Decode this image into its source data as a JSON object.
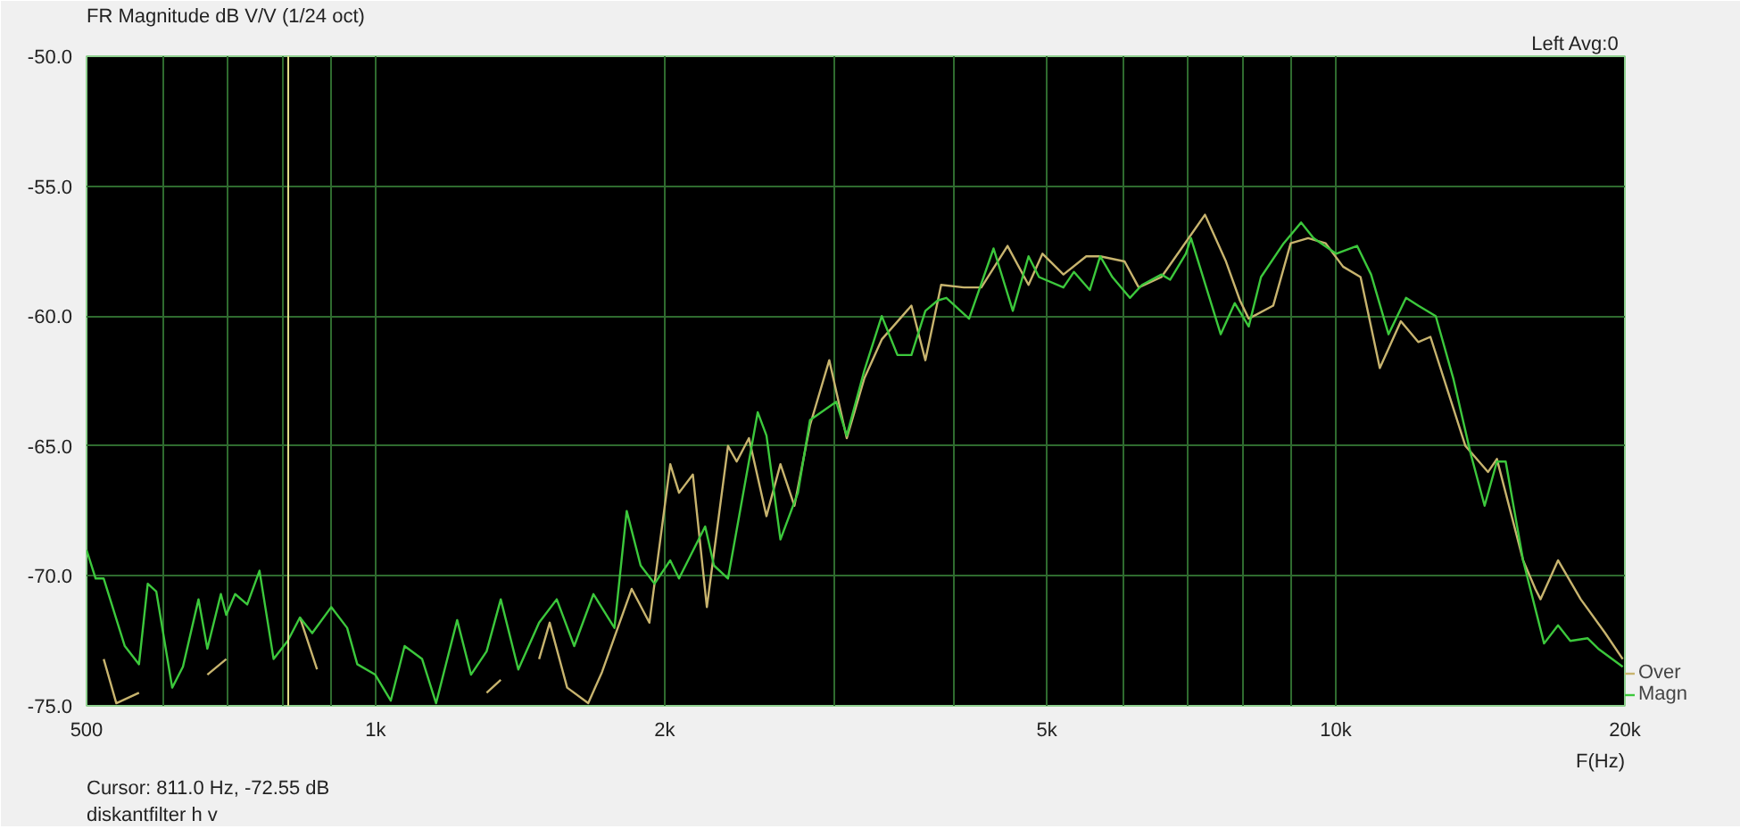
{
  "chart_data": {
    "type": "line",
    "title": "FR Magnitude dB V/V (1/24 oct)",
    "xlabel": "F(Hz)",
    "annotations": [
      "Left  Avg:0",
      "Cursor:   811.0 Hz, -72.55 dB",
      "diskantfilter h v"
    ],
    "log": "x",
    "grid": true,
    "legend": "bottom right",
    "line_style": "solid",
    "xlim": [
      500,
      20000
    ],
    "ylim": [
      -75,
      -50
    ],
    "xticks": [
      500,
      {
        "value": 600,
        "label": null
      },
      {
        "value": 700,
        "label": null
      },
      {
        "value": 800,
        "label": null
      },
      {
        "value": 900,
        "label": null
      },
      {
        "value": 1000,
        "label": "1k"
      },
      {
        "value": 2000,
        "label": "2k"
      },
      {
        "value": 3000,
        "label": null
      },
      {
        "value": 4000,
        "label": null
      },
      {
        "value": 5000,
        "label": "5k"
      },
      {
        "value": 6000,
        "label": null
      },
      {
        "value": 7000,
        "label": null
      },
      {
        "value": 8000,
        "label": null
      },
      {
        "value": 9000,
        "label": null
      },
      {
        "value": 10000,
        "label": "10k"
      },
      {
        "value": 20000,
        "label": "20k"
      }
    ],
    "yticks": [
      {
        "value": -75,
        "label": "-75.0"
      },
      {
        "value": -70,
        "label": "-70.0"
      },
      {
        "value": -65,
        "label": "-65.0"
      },
      {
        "value": -60,
        "label": "-60.0"
      },
      {
        "value": -55,
        "label": "-55.0"
      },
      {
        "value": -50,
        "label": "-50.0"
      }
    ],
    "ref_lines": [
      {
        "axis": "x",
        "value": 811,
        "label": null,
        "color": "#e6e28c"
      }
    ],
    "series": [
      {
        "name": "Over",
        "color": "#c8b46e",
        "x": [
          521,
          537,
          567,
          591,
          668,
          699,
          714,
          834,
          869,
          899,
          1305,
          1350,
          1408,
          1480,
          1518,
          1583,
          1665,
          1721,
          1848,
          1928,
          2027,
          2070,
          2140,
          2213,
          2328,
          2377,
          2448,
          2553,
          2640,
          2730,
          2834,
          2968,
          3095,
          3228,
          3366,
          3614,
          3737,
          3881,
          4099,
          4274,
          4551,
          4786,
          4949,
          5204,
          5496,
          5683,
          6026,
          6233,
          6582,
          7307,
          7684,
          7946,
          8115,
          8605,
          8974,
          9358,
          9759,
          10176,
          10611,
          11112,
          11687,
          12185,
          12546,
          13084,
          13645,
          14406,
          14714,
          15669,
          16135,
          16338,
          17037,
          17991,
          19078,
          19897
        ],
        "values": [
          -73.2,
          -74.9,
          -74.5,
          null,
          -73.8,
          -73.2,
          null,
          -71.6,
          -73.6,
          null,
          -74.5,
          -74.0,
          null,
          -73.2,
          -71.8,
          -74.3,
          -74.9,
          -73.7,
          -70.5,
          -71.8,
          -65.7,
          -66.8,
          -66.1,
          -71.2,
          -65.0,
          -65.6,
          -64.7,
          -67.7,
          -65.7,
          -67.3,
          -64.2,
          -61.7,
          -64.7,
          -62.4,
          -60.9,
          -59.6,
          -61.7,
          -58.8,
          -58.9,
          -58.9,
          -57.3,
          -58.8,
          -57.6,
          -58.4,
          -57.7,
          -57.7,
          -57.9,
          -58.9,
          -58.5,
          -56.1,
          -57.9,
          -59.4,
          -60.1,
          -59.6,
          -57.2,
          -57.0,
          -57.2,
          -58.1,
          -58.5,
          -62.0,
          -60.2,
          -61.0,
          -60.8,
          -62.9,
          -65.0,
          -66.0,
          -65.5,
          -69.4,
          -70.5,
          -70.9,
          -69.4,
          -70.9,
          -72.2,
          -73.2
        ]
      },
      {
        "name": "Magn",
        "color": "#3cc83c",
        "x": [
          500,
          511,
          521,
          548,
          567,
          579,
          591,
          614,
          630,
          654,
          668,
          690,
          699,
          714,
          735,
          757,
          783,
          810,
          834,
          859,
          899,
          934,
          957,
          999,
          1037,
          1072,
          1118,
          1156,
          1216,
          1257,
          1305,
          1350,
          1408,
          1480,
          1544,
          1610,
          1686,
          1773,
          1826,
          1888,
          1952,
          2027,
          2070,
          2204,
          2251,
          2328,
          2500,
          2553,
          2640,
          2753,
          2834,
          3018,
          3095,
          3228,
          3366,
          3495,
          3614,
          3737,
          3849,
          3930,
          4150,
          4401,
          4609,
          4786,
          4908,
          5204,
          5337,
          5543,
          5683,
          5852,
          6103,
          6284,
          6582,
          6722,
          6979,
          7066,
          7217,
          7588,
          7847,
          8115,
          8357,
          8824,
          9202,
          9477,
          10006,
          10522,
          10882,
          11347,
          11834,
          12185,
          12707,
          13253,
          13818,
          14287,
          14714,
          15027,
          15669,
          16477,
          17037,
          17546,
          18294,
          18760,
          19897
        ],
        "values": [
          -69.0,
          -70.1,
          -70.1,
          -72.7,
          -73.4,
          -70.3,
          -70.6,
          -74.3,
          -73.5,
          -70.9,
          -72.8,
          -70.7,
          -71.5,
          -70.7,
          -71.1,
          -69.8,
          -73.2,
          -72.5,
          -71.6,
          -72.2,
          -71.2,
          -72.0,
          -73.4,
          -73.8,
          -74.8,
          -72.7,
          -73.2,
          -74.9,
          -71.7,
          -73.8,
          -72.9,
          -70.9,
          -73.6,
          -71.8,
          -70.9,
          -72.7,
          -70.7,
          -72.0,
          -67.5,
          -69.6,
          -70.3,
          -69.4,
          -70.1,
          -68.1,
          -69.6,
          -70.1,
          -63.7,
          -64.6,
          -68.6,
          -66.8,
          -64.0,
          -63.3,
          -64.6,
          -62.1,
          -60.0,
          -61.5,
          -61.5,
          -59.8,
          -59.4,
          -59.3,
          -60.1,
          -57.4,
          -59.8,
          -57.7,
          -58.5,
          -58.9,
          -58.3,
          -59.0,
          -57.7,
          -58.5,
          -59.3,
          -58.8,
          -58.4,
          -58.6,
          -57.6,
          -57.0,
          -58.1,
          -60.7,
          -59.5,
          -60.4,
          -58.5,
          -57.2,
          -56.4,
          -57.0,
          -57.6,
          -57.3,
          -58.4,
          -60.7,
          -59.3,
          -59.6,
          -60.0,
          -62.4,
          -65.3,
          -67.3,
          -65.6,
          -65.6,
          -69.4,
          -72.6,
          -71.9,
          -72.5,
          -72.4,
          -72.8,
          -73.5
        ]
      }
    ]
  }
}
